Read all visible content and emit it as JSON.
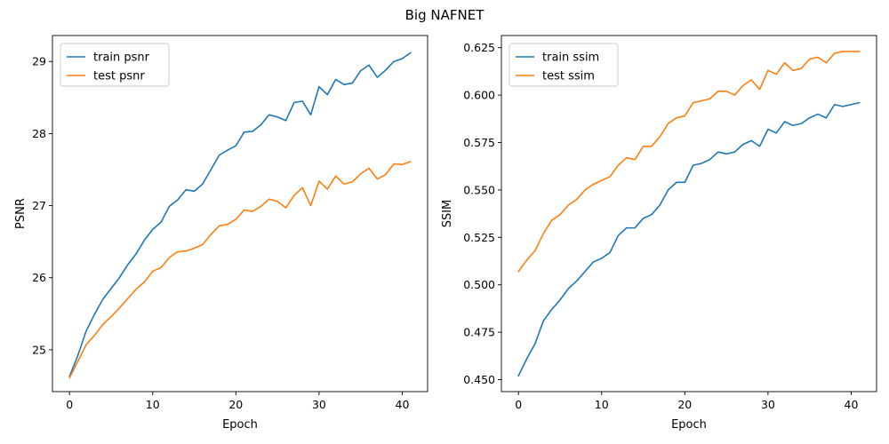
{
  "figure": {
    "title": "Big NAFNET"
  },
  "chart_data": [
    {
      "type": "line",
      "xlabel": "Epoch",
      "ylabel": "PSNR",
      "xlim": [
        -2.05,
        43.05
      ],
      "ylim": [
        24.42,
        29.36
      ],
      "xticks": [
        0,
        10,
        20,
        30,
        40
      ],
      "yticks": [
        25,
        26,
        27,
        28,
        29
      ],
      "tick_labels_x": [
        "0",
        "10",
        "20",
        "30",
        "40"
      ],
      "tick_labels_y": [
        "25",
        "26",
        "27",
        "28",
        "29"
      ],
      "grid": false,
      "legend_position": "upper left",
      "x": [
        0,
        1,
        2,
        3,
        4,
        5,
        6,
        7,
        8,
        9,
        10,
        11,
        12,
        13,
        14,
        15,
        16,
        17,
        18,
        19,
        20,
        21,
        22,
        23,
        24,
        25,
        26,
        27,
        28,
        29,
        30,
        31,
        32,
        33,
        34,
        35,
        36,
        37,
        38,
        39,
        40,
        41
      ],
      "series": [
        {
          "name": "train psnr",
          "color": "#1f77b4",
          "values": [
            24.63,
            24.92,
            25.26,
            25.49,
            25.7,
            25.85,
            26.0,
            26.18,
            26.33,
            26.52,
            26.67,
            26.77,
            26.99,
            27.08,
            27.22,
            27.2,
            27.3,
            27.5,
            27.7,
            27.77,
            27.83,
            28.02,
            28.03,
            28.12,
            28.26,
            28.23,
            28.18,
            28.43,
            28.45,
            28.26,
            28.65,
            28.54,
            28.75,
            28.68,
            28.7,
            28.87,
            28.95,
            28.78,
            28.88,
            29.0,
            29.04,
            29.12
          ]
        },
        {
          "name": "test psnr",
          "color": "#ff7f0e",
          "values": [
            24.61,
            24.84,
            25.07,
            25.2,
            25.35,
            25.46,
            25.58,
            25.71,
            25.84,
            25.94,
            26.09,
            26.14,
            26.28,
            26.36,
            26.37,
            26.41,
            26.46,
            26.6,
            26.72,
            26.74,
            26.81,
            26.94,
            26.92,
            26.99,
            27.09,
            27.06,
            26.97,
            27.14,
            27.25,
            27.0,
            27.34,
            27.23,
            27.41,
            27.3,
            27.33,
            27.44,
            27.52,
            27.37,
            27.43,
            27.58,
            27.57,
            27.61
          ]
        }
      ]
    },
    {
      "type": "line",
      "xlabel": "Epoch",
      "ylabel": "SSIM",
      "xlim": [
        -2.05,
        43.05
      ],
      "ylim": [
        0.4437,
        0.6314
      ],
      "xticks": [
        0,
        10,
        20,
        30,
        40
      ],
      "yticks": [
        0.45,
        0.475,
        0.5,
        0.525,
        0.55,
        0.575,
        0.6,
        0.625
      ],
      "tick_labels_x": [
        "0",
        "10",
        "20",
        "30",
        "40"
      ],
      "tick_labels_y": [
        "0.450",
        "0.475",
        "0.500",
        "0.525",
        "0.550",
        "0.575",
        "0.600",
        "0.625"
      ],
      "grid": false,
      "legend_position": "upper left",
      "x": [
        0,
        1,
        2,
        3,
        4,
        5,
        6,
        7,
        8,
        9,
        10,
        11,
        12,
        13,
        14,
        15,
        16,
        17,
        18,
        19,
        20,
        21,
        22,
        23,
        24,
        25,
        26,
        27,
        28,
        29,
        30,
        31,
        32,
        33,
        34,
        35,
        36,
        37,
        38,
        39,
        40,
        41
      ],
      "series": [
        {
          "name": "train ssim",
          "color": "#1f77b4",
          "values": [
            0.452,
            0.461,
            0.469,
            0.481,
            0.487,
            0.492,
            0.498,
            0.502,
            0.507,
            0.512,
            0.514,
            0.517,
            0.526,
            0.53,
            0.53,
            0.535,
            0.537,
            0.542,
            0.55,
            0.554,
            0.554,
            0.563,
            0.564,
            0.566,
            0.57,
            0.569,
            0.57,
            0.574,
            0.576,
            0.573,
            0.582,
            0.58,
            0.586,
            0.584,
            0.585,
            0.588,
            0.59,
            0.588,
            0.595,
            0.594,
            0.595,
            0.596
          ]
        },
        {
          "name": "test ssim",
          "color": "#ff7f0e",
          "values": [
            0.507,
            0.513,
            0.518,
            0.527,
            0.534,
            0.537,
            0.542,
            0.545,
            0.55,
            0.553,
            0.555,
            0.557,
            0.563,
            0.567,
            0.566,
            0.573,
            0.573,
            0.578,
            0.585,
            0.588,
            0.589,
            0.596,
            0.597,
            0.598,
            0.602,
            0.602,
            0.6,
            0.605,
            0.608,
            0.603,
            0.613,
            0.611,
            0.617,
            0.613,
            0.614,
            0.619,
            0.62,
            0.617,
            0.622,
            0.623,
            0.623,
            0.623
          ]
        }
      ]
    }
  ]
}
